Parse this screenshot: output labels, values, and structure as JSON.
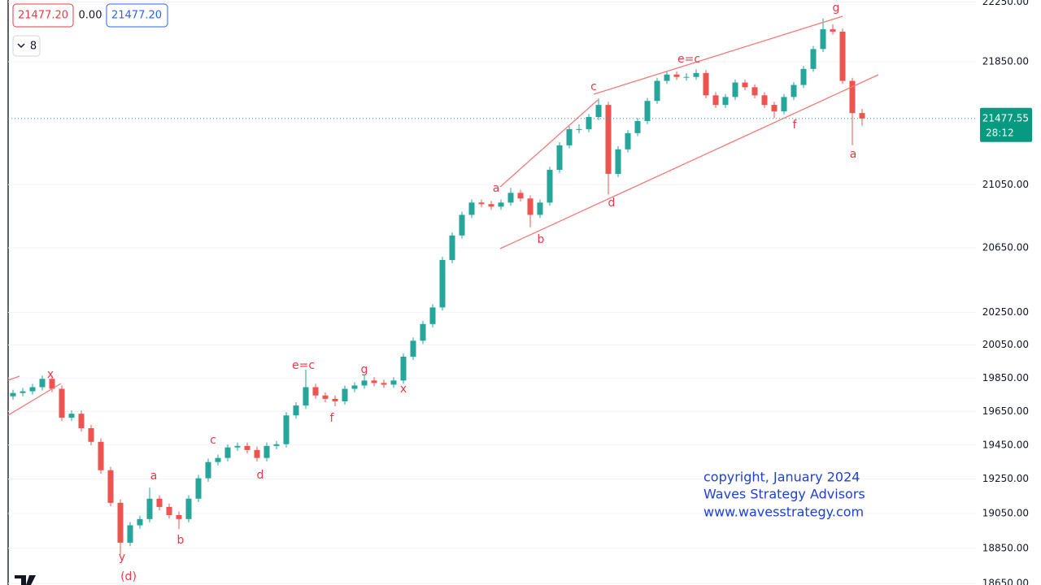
{
  "chart_data": {
    "type": "candlestick",
    "header": {
      "bid": "21477.20",
      "spread": "0.00",
      "ask": "21477.20",
      "interval": "8"
    },
    "up_color": "#26a69a",
    "down_color": "#ef5350",
    "grid": true,
    "log_scale": true,
    "ylim": [
      18641,
      22264
    ],
    "yticks": [
      {
        "value": 22250,
        "label": "22250.00"
      },
      {
        "value": 21850,
        "label": "21850.00"
      },
      {
        "value": 21050,
        "label": "21050.00"
      },
      {
        "value": 20650,
        "label": "20650.00"
      },
      {
        "value": 20250,
        "label": "20250.00"
      },
      {
        "value": 20050,
        "label": "20050.00"
      },
      {
        "value": 19850,
        "label": "19850.00"
      },
      {
        "value": 19650,
        "label": "19650.00"
      },
      {
        "value": 19450,
        "label": "19450.00"
      },
      {
        "value": 19250,
        "label": "19250.00"
      },
      {
        "value": 19050,
        "label": "19050.00"
      },
      {
        "value": 18850,
        "label": "18850.00"
      },
      {
        "value": 18650,
        "label": "18650.00"
      }
    ],
    "open": [
      19740,
      19760,
      19770,
      19795,
      19845,
      19785,
      19612,
      19636,
      19550,
      19469,
      19302,
      19112,
      18882,
      18982,
      19018,
      19136,
      19088,
      19041,
      19018,
      19136,
      19255,
      19350,
      19374,
      19436,
      19445,
      19421,
      19374,
      19445,
      19455,
      19626,
      19685,
      19795,
      19745,
      19725,
      19710,
      19785,
      19805,
      19835,
      19820,
      19810,
      19835,
      19979,
      20076,
      20178,
      20280,
      20574,
      20728,
      20858,
      20936,
      20926,
      20910,
      20936,
      20998,
      20962,
      20858,
      20936,
      21145,
      21303,
      21408,
      21408,
      21487,
      21566,
      21119,
      21277,
      21382,
      21461,
      21592,
      21724,
      21766,
      21750,
      21750,
      21776,
      21629,
      21566,
      21618,
      21713,
      21682,
      21629,
      21566,
      21524,
      21618,
      21697,
      21803,
      21935,
      22067,
      22051,
      21724,
      21513
    ],
    "high": [
      19780,
      19790,
      19815,
      19865,
      19865,
      19805,
      19656,
      19656,
      19570,
      19489,
      19322,
      19132,
      19002,
      19038,
      19200,
      19156,
      19108,
      19061,
      19156,
      19275,
      19370,
      19394,
      19456,
      19465,
      19465,
      19441,
      19465,
      19475,
      19646,
      19705,
      19900,
      19815,
      19765,
      19745,
      19805,
      19825,
      19870,
      19855,
      19840,
      19855,
      19999,
      20096,
      20198,
      20300,
      20594,
      20748,
      20878,
      20956,
      20956,
      20946,
      20956,
      21030,
      21018,
      20982,
      20956,
      21165,
      21323,
      21428,
      21440,
      21507,
      21610,
      21586,
      21297,
      21402,
      21481,
      21612,
      21744,
      21786,
      21786,
      21775,
      21800,
      21796,
      21649,
      21638,
      21733,
      21733,
      21702,
      21649,
      21586,
      21638,
      21717,
      21823,
      21955,
      22140,
      22100,
      22071,
      21744,
      21540
    ],
    "low": [
      19720,
      19740,
      19750,
      19775,
      19765,
      19592,
      19592,
      19530,
      19449,
      19282,
      19092,
      18814,
      18862,
      18962,
      18998,
      19068,
      19021,
      18960,
      18998,
      19116,
      19235,
      19330,
      19354,
      19416,
      19401,
      19354,
      19354,
      19425,
      19435,
      19606,
      19665,
      19725,
      19705,
      19680,
      19690,
      19765,
      19785,
      19800,
      19790,
      19790,
      19815,
      19959,
      20056,
      20158,
      20260,
      20554,
      20708,
      20838,
      20906,
      20890,
      20890,
      20916,
      20942,
      20780,
      20838,
      20916,
      21125,
      21283,
      21380,
      21388,
      21467,
      20988,
      21099,
      21257,
      21362,
      21441,
      21572,
      21704,
      21730,
      21725,
      21730,
      21609,
      21546,
      21546,
      21598,
      21662,
      21609,
      21546,
      21480,
      21504,
      21598,
      21677,
      21783,
      21915,
      22031,
      21704,
      21303,
      21430
    ],
    "close": [
      19760,
      19770,
      19795,
      19845,
      19785,
      19612,
      19636,
      19550,
      19469,
      19302,
      19112,
      18882,
      18982,
      19018,
      19136,
      19088,
      19041,
      19018,
      19136,
      19255,
      19350,
      19374,
      19436,
      19445,
      19421,
      19374,
      19445,
      19455,
      19626,
      19685,
      19795,
      19745,
      19725,
      19710,
      19785,
      19805,
      19835,
      19820,
      19810,
      19835,
      19979,
      20076,
      20178,
      20280,
      20574,
      20728,
      20858,
      20936,
      20926,
      20910,
      20936,
      20998,
      20962,
      20858,
      20936,
      21145,
      21303,
      21408,
      21408,
      21487,
      21566,
      21119,
      21277,
      21382,
      21461,
      21592,
      21724,
      21766,
      21750,
      21750,
      21776,
      21629,
      21566,
      21618,
      21713,
      21682,
      21629,
      21566,
      21524,
      21618,
      21697,
      21803,
      21935,
      22067,
      22051,
      21724,
      21513,
      21477.55
    ],
    "last_price": {
      "value": 21477.55,
      "label": "21477.55",
      "countdown": "28:12"
    },
    "annotations": [
      "x",
      "y",
      "(d)",
      "a",
      "b",
      "c",
      "d",
      "e=c",
      "f",
      "g",
      "x",
      "a",
      "b",
      "c",
      "d",
      "e=c",
      "f",
      "g",
      "a"
    ],
    "watermark": [
      "copyright, January 2024",
      "Waves Strategy Advisors",
      "www.wavesstrategy.com"
    ]
  }
}
